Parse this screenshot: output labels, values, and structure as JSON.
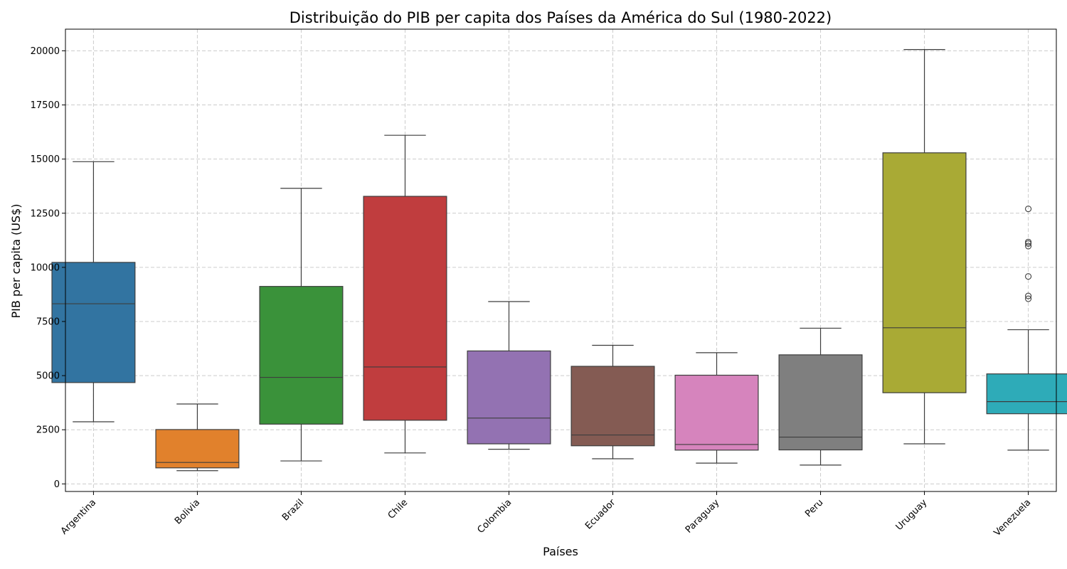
{
  "chart_data": {
    "type": "box",
    "title": "Distribuição do PIB per capita dos Países da América do Sul (1980-2022)",
    "xlabel": "Países",
    "ylabel": "PIB per capita (US$)",
    "ylim": [
      -350,
      21000
    ],
    "yticks": [
      0,
      2500,
      5000,
      7500,
      10000,
      12500,
      15000,
      17500,
      20000
    ],
    "grid": true,
    "categories": [
      "Argentina",
      "Bolivia",
      "Brazil",
      "Chile",
      "Colombia",
      "Ecuador",
      "Paraguay",
      "Peru",
      "Uruguay",
      "Venezuela"
    ],
    "boxes": [
      {
        "name": "Argentina",
        "whisker_low": 2870,
        "q1": 4680,
        "median": 8320,
        "q3": 10230,
        "whisker_high": 14880,
        "outliers": [],
        "color": "#3274a1"
      },
      {
        "name": "Bolivia",
        "whisker_low": 610,
        "q1": 740,
        "median": 990,
        "q3": 2510,
        "whisker_high": 3690,
        "outliers": [],
        "color": "#e1812c"
      },
      {
        "name": "Brazil",
        "whisker_low": 1060,
        "q1": 2760,
        "median": 4920,
        "q3": 9120,
        "whisker_high": 13650,
        "outliers": [],
        "color": "#3a923a"
      },
      {
        "name": "Chile",
        "whisker_low": 1430,
        "q1": 2940,
        "median": 5400,
        "q3": 13280,
        "whisker_high": 16100,
        "outliers": [],
        "color": "#c03d3e"
      },
      {
        "name": "Colombia",
        "whisker_low": 1600,
        "q1": 1850,
        "median": 3040,
        "q3": 6140,
        "whisker_high": 8420,
        "outliers": [],
        "color": "#9372b2"
      },
      {
        "name": "Ecuador",
        "whisker_low": 1160,
        "q1": 1760,
        "median": 2260,
        "q3": 5430,
        "whisker_high": 6400,
        "outliers": [],
        "color": "#845b53"
      },
      {
        "name": "Paraguay",
        "whisker_low": 960,
        "q1": 1560,
        "median": 1820,
        "q3": 5020,
        "whisker_high": 6060,
        "outliers": [],
        "color": "#d684bd"
      },
      {
        "name": "Peru",
        "whisker_low": 870,
        "q1": 1570,
        "median": 2160,
        "q3": 5960,
        "whisker_high": 7190,
        "outliers": [],
        "color": "#7f7f7f"
      },
      {
        "name": "Uruguay",
        "whisker_low": 1850,
        "q1": 4210,
        "median": 7210,
        "q3": 15290,
        "whisker_high": 20060,
        "outliers": [],
        "color": "#a9aa35"
      },
      {
        "name": "Venezuela",
        "whisker_low": 1560,
        "q1": 3240,
        "median": 3800,
        "q3": 5080,
        "whisker_high": 7120,
        "outliers": [
          8550,
          8680,
          9580,
          10980,
          11100,
          11170,
          12700
        ],
        "color": "#2eabb8"
      }
    ]
  }
}
